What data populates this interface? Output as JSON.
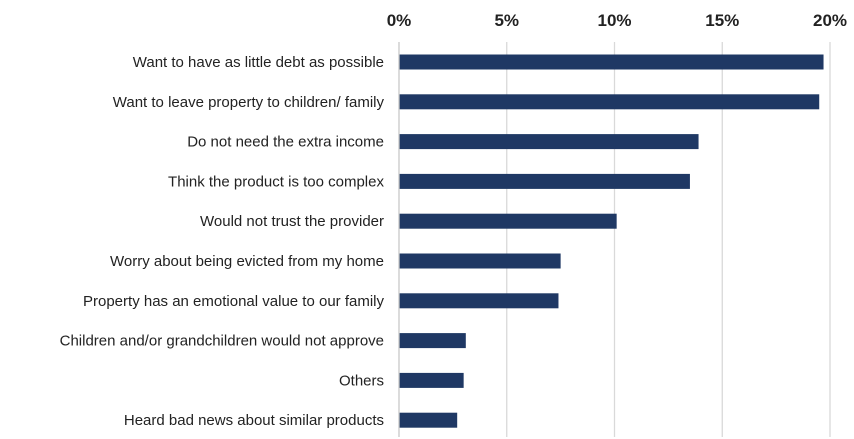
{
  "chart_data": {
    "type": "bar",
    "orientation": "horizontal",
    "title": "",
    "xlabel": "",
    "ylabel": "",
    "categories": [
      "Want to have as little debt as possible",
      "Want to leave property to children/ family",
      "Do not need the extra income",
      "Think the product is too complex",
      "Would not trust the provider",
      "Worry about being evicted from my home",
      "Property has an emotional value to our family",
      "Children and/or grandchildren would not approve",
      "Others",
      "Heard bad news about similar products"
    ],
    "values": [
      19.7,
      19.5,
      13.9,
      13.5,
      10.1,
      7.5,
      7.4,
      3.1,
      3.0,
      2.7
    ],
    "xlim": [
      0,
      20
    ],
    "xticks": [
      0,
      5,
      10,
      15,
      20
    ],
    "xtick_labels": [
      "0%",
      "5%",
      "10%",
      "15%",
      "20%"
    ],
    "value_unit": "%",
    "x_axis_position": "top",
    "grid": true,
    "legend": "none",
    "bar_color": "#1f3864",
    "grid_color": "#d9d9d9"
  }
}
